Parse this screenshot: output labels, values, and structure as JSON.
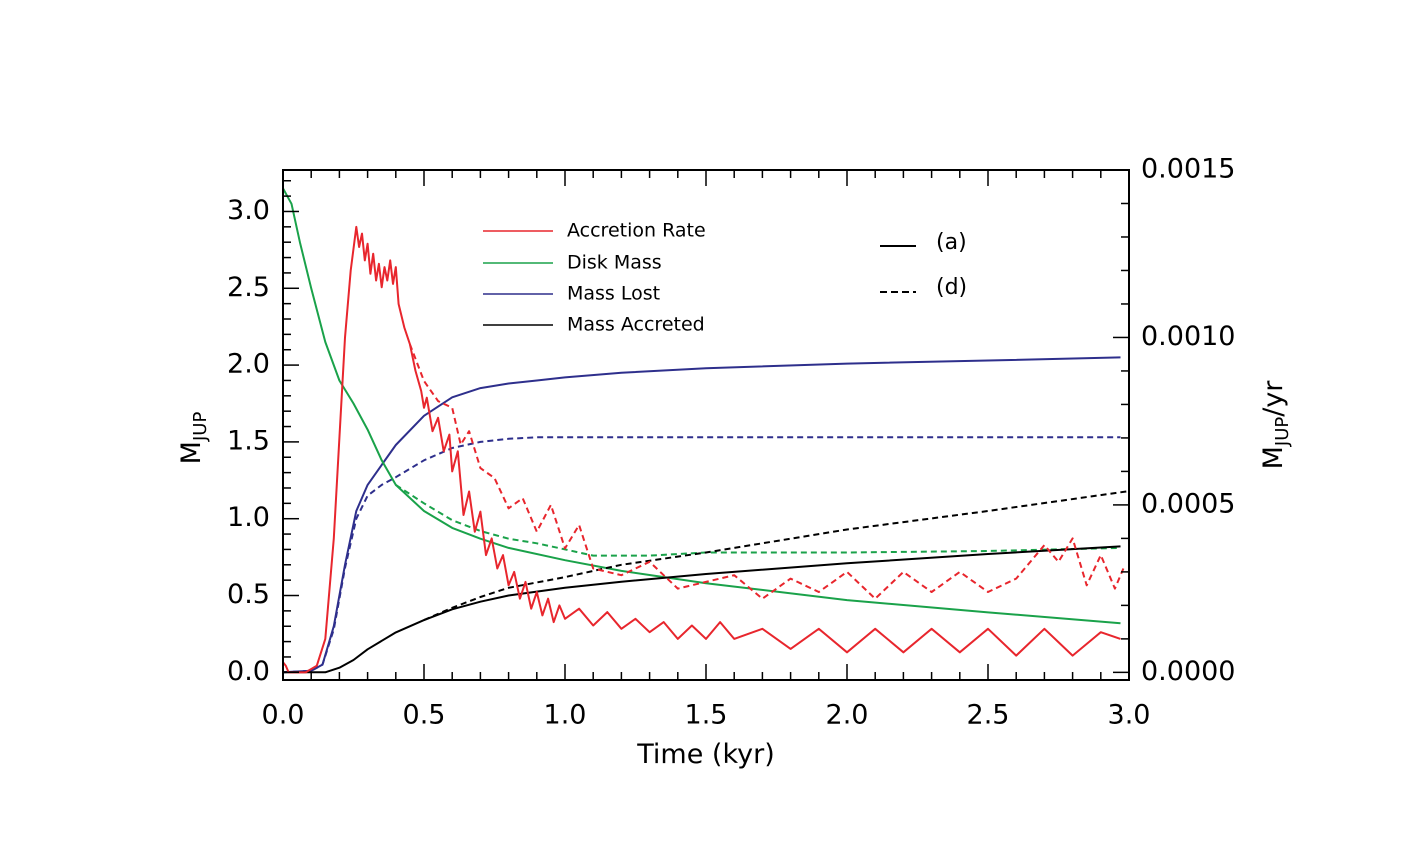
{
  "chart_data": {
    "type": "line",
    "xlabel": "Time (kyr)",
    "ylabel_left": {
      "main": "M",
      "sub": "JUP"
    },
    "ylabel_right": {
      "main": "M",
      "sub": "JUP",
      "suffix": "/yr"
    },
    "xlim": [
      0,
      3
    ],
    "ylim_left": [
      -0.05,
      3.27
    ],
    "ylim_right": [
      -2.28e-05,
      0.0015
    ],
    "x_ticks": [
      "0.0",
      "0.5",
      "1.0",
      "1.5",
      "2.0",
      "2.5",
      "3.0"
    ],
    "y_left_ticks": [
      "0.0",
      "0.5",
      "1.0",
      "1.5",
      "2.0",
      "2.5",
      "3.0"
    ],
    "y_right_ticks": [
      "0.0000",
      "0.0005",
      "0.0010",
      "0.0015"
    ],
    "grid": false,
    "legend": {
      "placement": "top-center",
      "series_entries": [
        {
          "label": "Accretion Rate",
          "color": "#e8262d"
        },
        {
          "label": "Disk Mass",
          "color": "#1aa24a"
        },
        {
          "label": "Mass Lost",
          "color": "#2e2f8c"
        },
        {
          "label": "Mass Accreted",
          "color": "#000000"
        }
      ],
      "style_entries": [
        {
          "label": "(a)",
          "dash": "solid"
        },
        {
          "label": "(d)",
          "dash": "dashed"
        }
      ]
    },
    "series": [
      {
        "name": "Mass Lost",
        "model": "(a)",
        "axis": "left",
        "color": "#2e2f8c",
        "dash": "solid",
        "x": [
          0,
          0.1,
          0.14,
          0.18,
          0.22,
          0.26,
          0.3,
          0.35,
          0.4,
          0.5,
          0.6,
          0.7,
          0.8,
          0.9,
          1.0,
          1.2,
          1.5,
          2.0,
          2.5,
          2.97
        ],
        "y": [
          0,
          0.01,
          0.05,
          0.3,
          0.7,
          1.05,
          1.22,
          1.35,
          1.48,
          1.67,
          1.79,
          1.85,
          1.88,
          1.9,
          1.92,
          1.95,
          1.98,
          2.01,
          2.03,
          2.05
        ]
      },
      {
        "name": "Mass Lost",
        "model": "(d)",
        "axis": "left",
        "color": "#2e2f8c",
        "dash": "dashed",
        "x": [
          0,
          0.1,
          0.14,
          0.18,
          0.22,
          0.26,
          0.3,
          0.35,
          0.4,
          0.5,
          0.6,
          0.7,
          0.8,
          0.9,
          1.0,
          1.5,
          2.0,
          2.5,
          2.97
        ],
        "y": [
          0,
          0.01,
          0.05,
          0.28,
          0.68,
          1.0,
          1.15,
          1.22,
          1.27,
          1.38,
          1.46,
          1.5,
          1.52,
          1.53,
          1.53,
          1.53,
          1.53,
          1.53,
          1.53
        ]
      },
      {
        "name": "Disk Mass",
        "model": "(a)",
        "axis": "left",
        "color": "#1aa24a",
        "dash": "solid",
        "x": [
          0,
          0.03,
          0.06,
          0.1,
          0.15,
          0.2,
          0.25,
          0.3,
          0.35,
          0.4,
          0.5,
          0.6,
          0.7,
          0.8,
          1.0,
          1.2,
          1.5,
          2.0,
          2.5,
          2.97
        ],
        "y": [
          3.15,
          3.05,
          2.8,
          2.5,
          2.15,
          1.9,
          1.75,
          1.58,
          1.38,
          1.22,
          1.05,
          0.94,
          0.87,
          0.81,
          0.73,
          0.66,
          0.58,
          0.47,
          0.39,
          0.32
        ]
      },
      {
        "name": "Disk Mass",
        "model": "(d)",
        "axis": "left",
        "color": "#1aa24a",
        "dash": "dashed",
        "x": [
          0.4,
          0.5,
          0.6,
          0.7,
          0.8,
          0.9,
          1.0,
          1.1,
          1.3,
          1.5,
          2.0,
          2.5,
          2.97
        ],
        "y": [
          1.22,
          1.1,
          0.99,
          0.92,
          0.87,
          0.84,
          0.8,
          0.76,
          0.76,
          0.78,
          0.78,
          0.79,
          0.81
        ]
      },
      {
        "name": "Mass Accreted",
        "model": "(a)",
        "axis": "left",
        "color": "#000000",
        "dash": "solid",
        "x": [
          0,
          0.15,
          0.2,
          0.25,
          0.3,
          0.4,
          0.5,
          0.6,
          0.7,
          0.8,
          1.0,
          1.2,
          1.5,
          2.0,
          2.5,
          2.97
        ],
        "y": [
          0,
          0,
          0.03,
          0.08,
          0.15,
          0.26,
          0.34,
          0.41,
          0.46,
          0.5,
          0.55,
          0.59,
          0.64,
          0.71,
          0.77,
          0.82
        ]
      },
      {
        "name": "Mass Accreted",
        "model": "(d)",
        "axis": "left",
        "color": "#000000",
        "dash": "dashed",
        "x": [
          0.5,
          0.6,
          0.7,
          0.8,
          1.0,
          1.2,
          1.5,
          2.0,
          2.5,
          3.0
        ],
        "y": [
          0.34,
          0.42,
          0.49,
          0.55,
          0.62,
          0.7,
          0.78,
          0.93,
          1.05,
          1.18
        ]
      },
      {
        "name": "Accretion Rate",
        "model": "(a)",
        "axis": "right",
        "color": "#e8262d",
        "dash": "solid",
        "x": [
          0,
          0.01,
          0.02,
          0.04,
          0.08,
          0.12,
          0.15,
          0.18,
          0.2,
          0.22,
          0.24,
          0.26,
          0.27,
          0.28,
          0.29,
          0.3,
          0.31,
          0.32,
          0.33,
          0.34,
          0.35,
          0.36,
          0.37,
          0.38,
          0.39,
          0.4,
          0.41,
          0.43,
          0.45,
          0.47,
          0.49,
          0.5,
          0.51,
          0.53,
          0.55,
          0.57,
          0.59,
          0.6,
          0.62,
          0.64,
          0.66,
          0.68,
          0.7,
          0.72,
          0.74,
          0.76,
          0.78,
          0.8,
          0.82,
          0.84,
          0.86,
          0.88,
          0.9,
          0.92,
          0.94,
          0.96,
          0.98,
          1.0,
          1.05,
          1.1,
          1.15,
          1.2,
          1.25,
          1.3,
          1.35,
          1.4,
          1.45,
          1.5,
          1.55,
          1.6,
          1.7,
          1.8,
          1.9,
          2.0,
          2.1,
          2.2,
          2.3,
          2.4,
          2.5,
          2.6,
          2.7,
          2.8,
          2.9,
          2.97
        ],
        "y": [
          3e-05,
          2e-05,
          0.0,
          0.0,
          0.0,
          2e-05,
          0.0001,
          0.0004,
          0.0007,
          0.001,
          0.0012,
          0.00133,
          0.00127,
          0.00131,
          0.00123,
          0.00128,
          0.00119,
          0.00125,
          0.00117,
          0.00122,
          0.00115,
          0.00121,
          0.00117,
          0.00123,
          0.00116,
          0.00121,
          0.0011,
          0.00103,
          0.00098,
          0.0009,
          0.00084,
          0.00079,
          0.00082,
          0.00072,
          0.00076,
          0.00066,
          0.00071,
          0.0006,
          0.00066,
          0.00047,
          0.00054,
          0.00042,
          0.00048,
          0.00035,
          0.0004,
          0.00031,
          0.00035,
          0.00026,
          0.0003,
          0.00022,
          0.00027,
          0.00019,
          0.00024,
          0.00017,
          0.00022,
          0.00015,
          0.0002,
          0.00016,
          0.00019,
          0.00014,
          0.00018,
          0.00013,
          0.00016,
          0.00012,
          0.00015,
          0.0001,
          0.00014,
          0.0001,
          0.00015,
          0.0001,
          0.00013,
          7e-05,
          0.00013,
          6e-05,
          0.00013,
          6e-05,
          0.00013,
          6e-05,
          0.00013,
          5e-05,
          0.00013,
          5e-05,
          0.00012,
          0.0001
        ]
      },
      {
        "name": "Accretion Rate",
        "model": "(d)",
        "axis": "right",
        "color": "#e8262d",
        "dash": "dashed",
        "x": [
          0.45,
          0.5,
          0.55,
          0.6,
          0.63,
          0.66,
          0.7,
          0.75,
          0.8,
          0.85,
          0.9,
          0.95,
          1.0,
          1.05,
          1.1,
          1.2,
          1.3,
          1.4,
          1.5,
          1.6,
          1.7,
          1.8,
          1.9,
          2.0,
          2.1,
          2.2,
          2.3,
          2.4,
          2.5,
          2.6,
          2.7,
          2.75,
          2.8,
          2.85,
          2.9,
          2.95,
          2.98
        ],
        "y": [
          0.00098,
          0.00087,
          0.00081,
          0.00079,
          0.00068,
          0.00072,
          0.00061,
          0.00058,
          0.00049,
          0.00052,
          0.00042,
          0.0005,
          0.00037,
          0.00044,
          0.00031,
          0.00029,
          0.00033,
          0.00025,
          0.00027,
          0.00029,
          0.00022,
          0.00028,
          0.00024,
          0.0003,
          0.00022,
          0.0003,
          0.00024,
          0.0003,
          0.00024,
          0.00028,
          0.00038,
          0.00033,
          0.0004,
          0.00026,
          0.00035,
          0.00025,
          0.00031
        ]
      }
    ]
  }
}
